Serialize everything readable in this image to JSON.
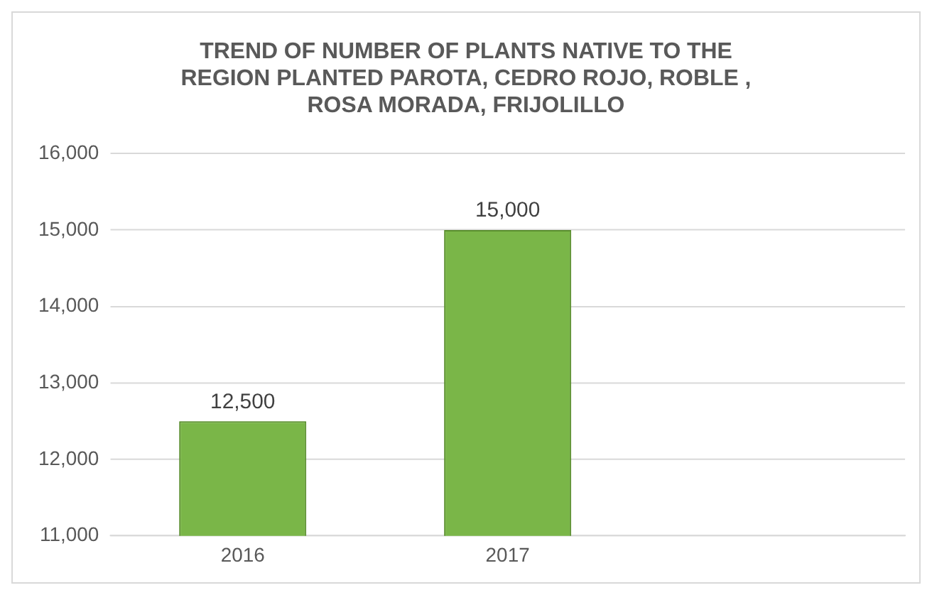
{
  "chart_data": {
    "type": "bar",
    "title": "TREND OF NUMBER OF PLANTS NATIVE TO THE REGION PLANTED PAROTA, CEDRO ROJO, ROBLE , ROSA MORADA, FRIJOLILLO",
    "categories": [
      "2016",
      "2017",
      null
    ],
    "values": [
      12500,
      15000,
      null
    ],
    "color": "#7ab648",
    "ylim": [
      11000,
      16000
    ],
    "yticks": [
      {
        "value": 11000,
        "label": "11,000"
      },
      {
        "value": 12000,
        "label": "12,000"
      },
      {
        "value": 13000,
        "label": "13,000"
      },
      {
        "value": 14000,
        "label": "14,000"
      },
      {
        "value": 15000,
        "label": "15,000"
      },
      {
        "value": 16000,
        "label": "16,000"
      }
    ],
    "value_labels": [
      "12,500",
      "15,000",
      null
    ],
    "grid": "y",
    "legend": false
  }
}
